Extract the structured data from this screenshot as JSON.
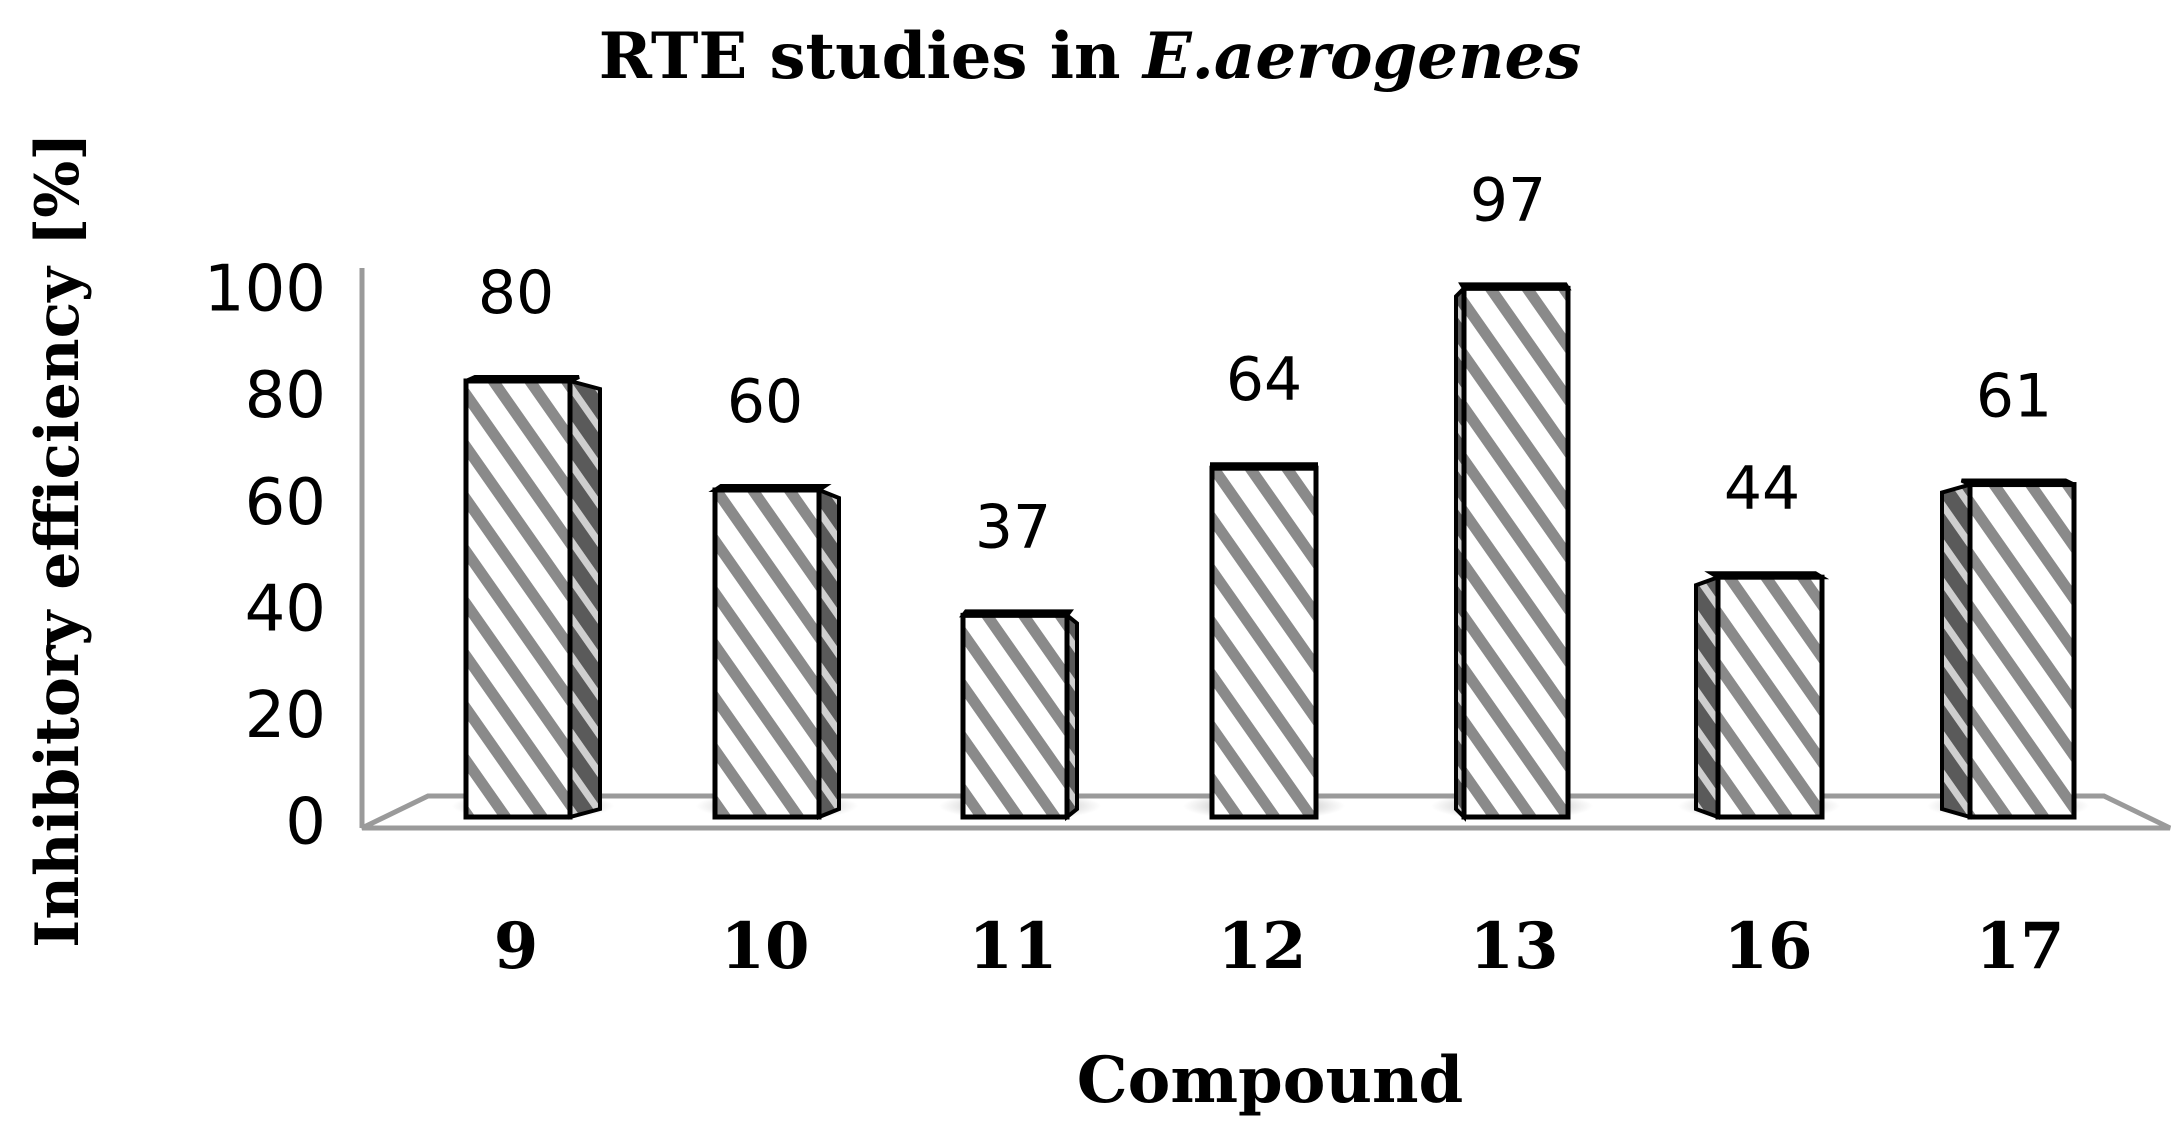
{
  "chart_data": {
    "type": "bar",
    "title_prefix": "RTE studies in ",
    "title_italic": "E.aerogenes",
    "xlabel": "Compound",
    "ylabel": "Inhibitory efficiency [%]",
    "categories": [
      "9",
      "10",
      "11",
      "12",
      "13",
      "16",
      "17"
    ],
    "values": [
      80,
      60,
      37,
      64,
      97,
      44,
      61
    ],
    "yticks": [
      0,
      20,
      40,
      60,
      80,
      100
    ],
    "ylim": [
      0,
      100
    ],
    "grid": false,
    "legend": "none",
    "bar_style": "3d hatched"
  }
}
